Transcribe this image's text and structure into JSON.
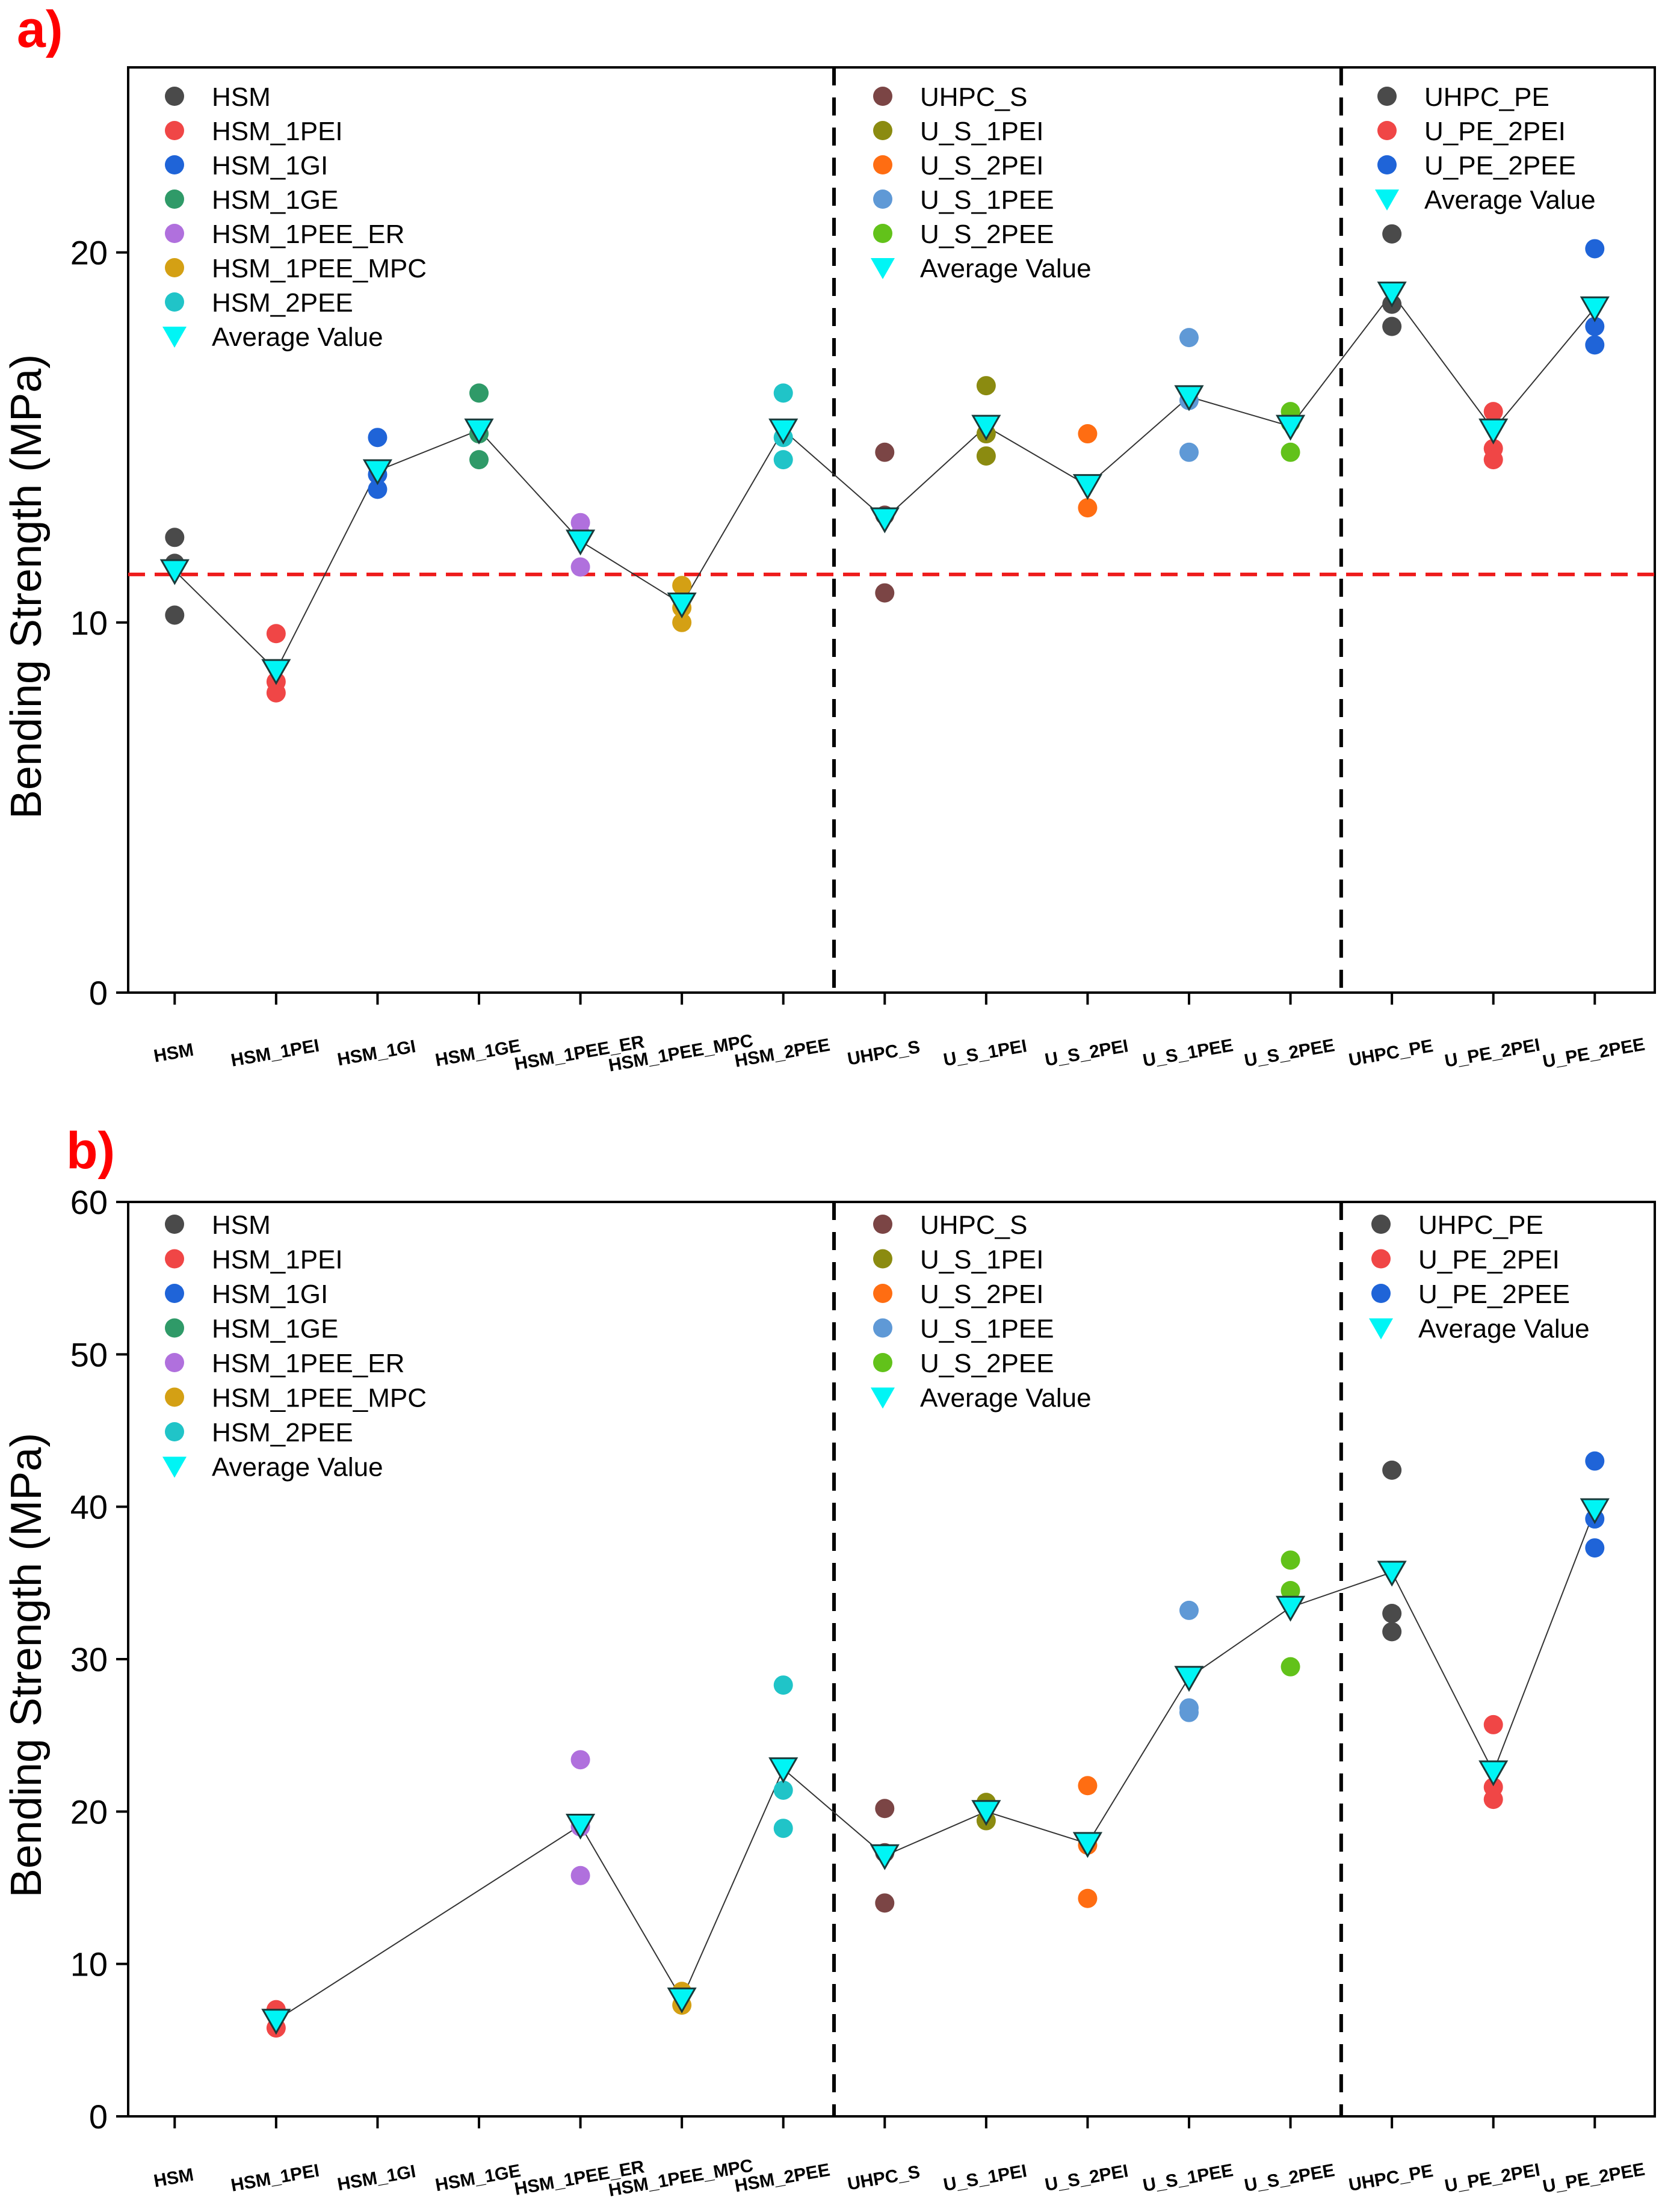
{
  "chart_data": [
    {
      "panel_label": "a)",
      "type": "scatter",
      "ylabel": "Bending Strength (MPa)",
      "ylim": [
        0,
        25
      ],
      "yticks": [
        "0",
        "10",
        "20"
      ],
      "categories": [
        "HSM",
        "HSM_1PEI",
        "HSM_1GI",
        "HSM_1GE",
        "HSM_1PEE_ER",
        "HSM_1PEE_MPC",
        "HSM_2PEE",
        "UHPC_S",
        "U_S_1PEI",
        "U_S_2PEI",
        "U_S_1PEE",
        "U_S_2PEE",
        "UHPC_PE",
        "U_PE_2PEI",
        "U_PE_2PEE"
      ],
      "group_dividers_after": [
        6,
        11
      ],
      "reference_line": {
        "y": 11.3,
        "color": "#ee1c1c"
      },
      "series": [
        {
          "name": "HSM",
          "color": "#4a4a4a",
          "index": 0,
          "values": [
            12.3,
            11.6,
            10.2
          ]
        },
        {
          "name": "HSM_1PEI",
          "color": "#f04646",
          "index": 1,
          "values": [
            9.7,
            8.4,
            8.1
          ]
        },
        {
          "name": "HSM_1GI",
          "color": "#1f64d8",
          "index": 2,
          "values": [
            15.0,
            14.0,
            13.6
          ]
        },
        {
          "name": "HSM_1GE",
          "color": "#2f9a68",
          "index": 3,
          "values": [
            16.2,
            15.1,
            14.4
          ]
        },
        {
          "name": "HSM_1PEE_ER",
          "color": "#b070dd",
          "index": 4,
          "values": [
            12.7,
            12.4,
            11.5
          ]
        },
        {
          "name": "HSM_1PEE_MPC",
          "color": "#d4a014",
          "index": 5,
          "values": [
            11.0,
            10.4,
            10.0
          ]
        },
        {
          "name": "HSM_2PEE",
          "color": "#20c4c8",
          "index": 6,
          "values": [
            16.2,
            15.0,
            14.4
          ]
        },
        {
          "name": "UHPC_S",
          "color": "#7b4545",
          "index": 7,
          "values": [
            14.6,
            12.9,
            10.8
          ]
        },
        {
          "name": "U_S_1PEI",
          "color": "#8b8b10",
          "index": 8,
          "values": [
            16.4,
            15.1,
            14.5
          ]
        },
        {
          "name": "U_S_2PEI",
          "color": "#ff6d12",
          "index": 9,
          "values": [
            15.1,
            13.1
          ]
        },
        {
          "name": "U_S_1PEE",
          "color": "#5f99d6",
          "index": 10,
          "values": [
            17.7,
            16.0,
            14.6
          ]
        },
        {
          "name": "U_S_2PEE",
          "color": "#62c21a",
          "index": 11,
          "values": [
            15.7,
            15.4,
            14.6
          ]
        },
        {
          "name": "UHPC_PE",
          "color": "#4a4a4a",
          "index": 12,
          "values": [
            20.5,
            18.6,
            18.0
          ]
        },
        {
          "name": "U_PE_2PEI",
          "color": "#f04646",
          "index": 13,
          "values": [
            15.7,
            14.7,
            14.4
          ]
        },
        {
          "name": "U_PE_2PEE",
          "color": "#1f64d8",
          "index": 14,
          "values": [
            20.1,
            18.0,
            17.5
          ]
        }
      ],
      "average": {
        "name": "Average Value",
        "color": "#00f5f5",
        "values": [
          11.4,
          8.7,
          14.1,
          15.2,
          12.2,
          10.5,
          15.2,
          12.8,
          15.3,
          13.7,
          16.1,
          15.3,
          18.9,
          15.2,
          18.5
        ]
      },
      "legends": [
        {
          "group": 0,
          "items": [
            "HSM",
            "HSM_1PEI",
            "HSM_1GI",
            "HSM_1GE",
            "HSM_1PEE_ER",
            "HSM_1PEE_MPC",
            "HSM_2PEE"
          ]
        },
        {
          "group": 1,
          "items": [
            "UHPC_S",
            "U_S_1PEI",
            "U_S_2PEI",
            "U_S_1PEE",
            "U_S_2PEE"
          ]
        },
        {
          "group": 2,
          "items": [
            "UHPC_PE",
            "U_PE_2PEI",
            "U_PE_2PEE"
          ]
        }
      ]
    },
    {
      "panel_label": "b)",
      "type": "scatter",
      "ylabel": "Bending Strength (MPa)",
      "ylim": [
        0,
        60
      ],
      "yticks": [
        "0",
        "10",
        "20",
        "30",
        "40",
        "50",
        "60"
      ],
      "categories": [
        "HSM",
        "HSM_1PEI",
        "HSM_1GI",
        "HSM_1GE",
        "HSM_1PEE_ER",
        "HSM_1PEE_MPC",
        "HSM_2PEE",
        "UHPC_S",
        "U_S_1PEI",
        "U_S_2PEI",
        "U_S_1PEE",
        "U_S_2PEE",
        "UHPC_PE",
        "U_PE_2PEI",
        "U_PE_2PEE"
      ],
      "group_dividers_after": [
        6,
        11
      ],
      "reference_line": null,
      "series": [
        {
          "name": "HSM",
          "color": "#4a4a4a",
          "index": 0,
          "values": []
        },
        {
          "name": "HSM_1PEI",
          "color": "#f04646",
          "index": 1,
          "values": [
            7.0,
            5.8
          ]
        },
        {
          "name": "HSM_1GI",
          "color": "#1f64d8",
          "index": 2,
          "values": []
        },
        {
          "name": "HSM_1GE",
          "color": "#2f9a68",
          "index": 3,
          "values": []
        },
        {
          "name": "HSM_1PEE_ER",
          "color": "#b070dd",
          "index": 4,
          "values": [
            23.4,
            19.0,
            15.8
          ]
        },
        {
          "name": "HSM_1PEE_MPC",
          "color": "#d4a014",
          "index": 5,
          "values": [
            8.2,
            7.3
          ]
        },
        {
          "name": "HSM_2PEE",
          "color": "#20c4c8",
          "index": 6,
          "values": [
            28.3,
            21.4,
            18.9
          ]
        },
        {
          "name": "UHPC_S",
          "color": "#7b4545",
          "index": 7,
          "values": [
            20.2,
            17.3,
            14.0
          ]
        },
        {
          "name": "U_S_1PEI",
          "color": "#8b8b10",
          "index": 8,
          "values": [
            20.6,
            19.4
          ]
        },
        {
          "name": "U_S_2PEI",
          "color": "#ff6d12",
          "index": 9,
          "values": [
            21.7,
            17.8,
            14.3
          ]
        },
        {
          "name": "U_S_1PEE",
          "color": "#5f99d6",
          "index": 10,
          "values": [
            33.2,
            26.8,
            26.5
          ]
        },
        {
          "name": "U_S_2PEE",
          "color": "#62c21a",
          "index": 11,
          "values": [
            36.5,
            34.5,
            29.5
          ]
        },
        {
          "name": "UHPC_PE",
          "color": "#4a4a4a",
          "index": 12,
          "values": [
            42.4,
            33.0,
            31.8
          ]
        },
        {
          "name": "U_PE_2PEI",
          "color": "#f04646",
          "index": 13,
          "values": [
            25.7,
            21.6,
            20.8
          ]
        },
        {
          "name": "U_PE_2PEE",
          "color": "#1f64d8",
          "index": 14,
          "values": [
            43.0,
            39.2,
            37.3
          ]
        }
      ],
      "average": {
        "name": "Average Value",
        "color": "#00f5f5",
        "values": [
          null,
          6.3,
          null,
          null,
          19.1,
          7.7,
          22.8,
          17.1,
          20.0,
          17.9,
          28.8,
          33.4,
          35.7,
          22.6,
          39.8
        ]
      },
      "legends": [
        {
          "group": 0,
          "items": [
            "HSM",
            "HSM_1PEI",
            "HSM_1GI",
            "HSM_1GE",
            "HSM_1PEE_ER",
            "HSM_1PEE_MPC",
            "HSM_2PEE"
          ]
        },
        {
          "group": 1,
          "items": [
            "UHPC_S",
            "U_S_1PEI",
            "U_S_2PEI",
            "U_S_1PEE",
            "U_S_2PEE"
          ]
        },
        {
          "group": 2,
          "items": [
            "UHPC_PE",
            "U_PE_2PEI",
            "U_PE_2PEE"
          ]
        }
      ]
    }
  ]
}
